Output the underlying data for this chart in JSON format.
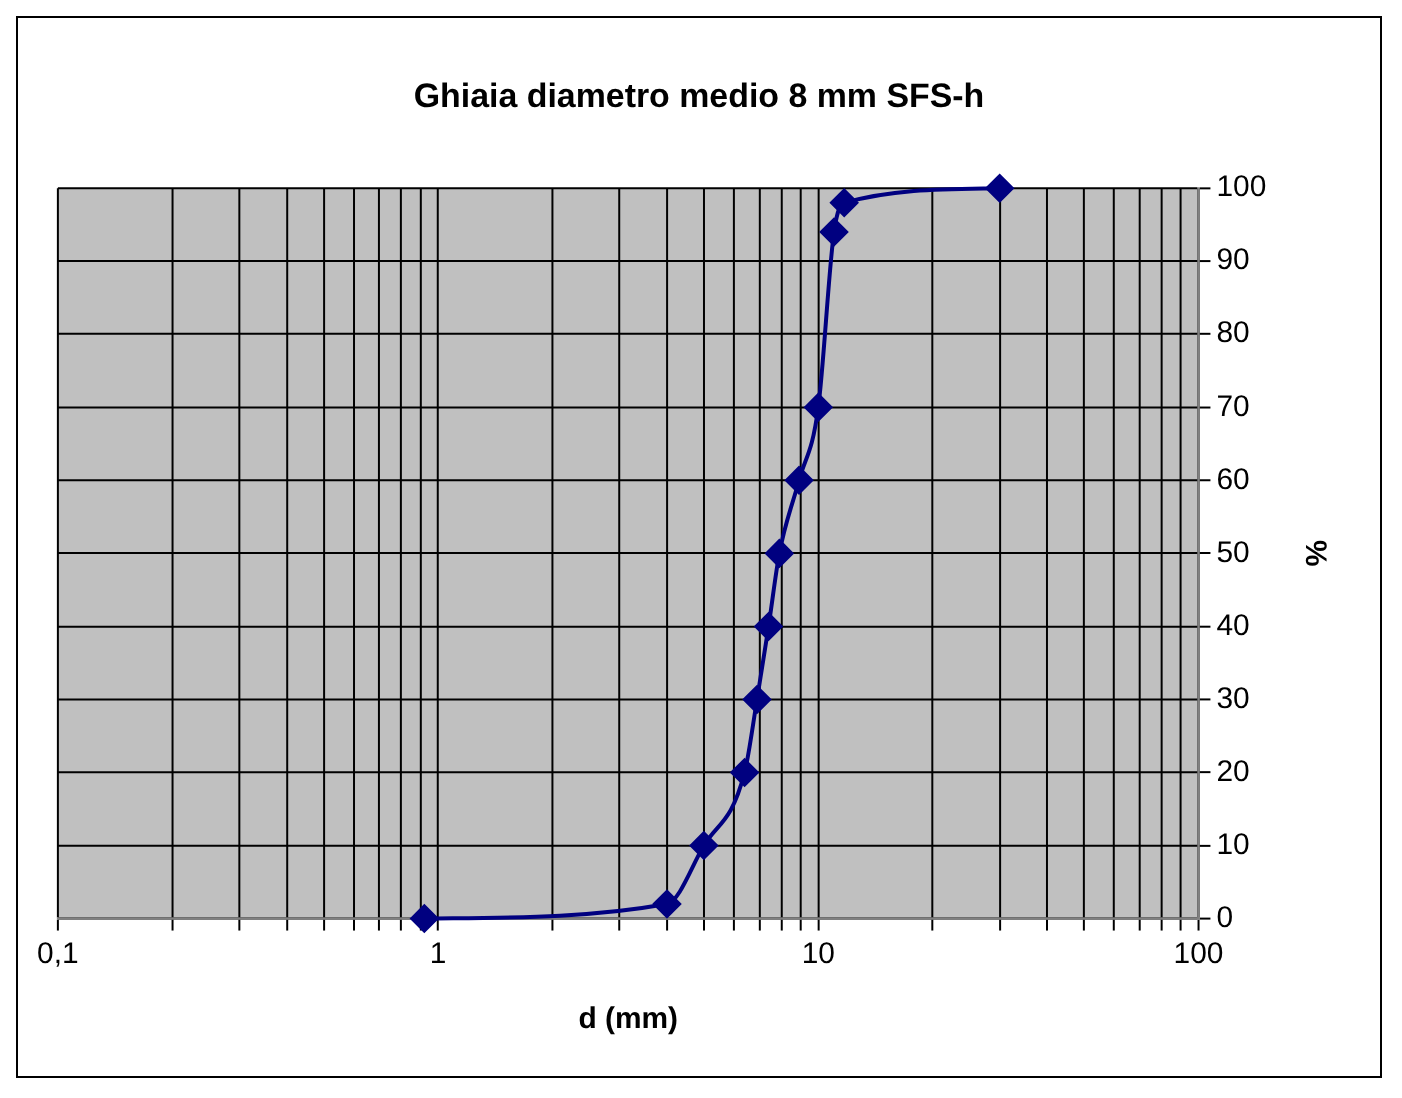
{
  "chart_data": {
    "type": "line",
    "title": "Ghiaia diametro medio 8 mm SFS-h",
    "xlabel": "d (mm)",
    "ylabel": "%",
    "log": "x",
    "x": [
      0.92,
      4.0,
      5.0,
      6.4,
      6.9,
      7.4,
      7.9,
      8.9,
      10,
      11,
      11.7,
      30
    ],
    "series": [
      {
        "color": "#000080",
        "values": [
          0,
          2,
          10,
          20,
          30,
          40,
          50,
          60,
          70,
          94,
          98,
          100
        ]
      }
    ],
    "xlim": [
      0.1,
      100
    ],
    "xticks": [
      {
        "value": 0.1,
        "label": "0,1"
      },
      {
        "value": 0.2,
        "label": null
      },
      {
        "value": 0.3,
        "label": null
      },
      {
        "value": 0.4,
        "label": null
      },
      {
        "value": 0.5,
        "label": null
      },
      {
        "value": 0.6,
        "label": null
      },
      {
        "value": 0.7,
        "label": null
      },
      {
        "value": 0.8,
        "label": null
      },
      {
        "value": 0.9,
        "label": null
      },
      1,
      {
        "value": 2,
        "label": null
      },
      {
        "value": 3,
        "label": null
      },
      {
        "value": 4,
        "label": null
      },
      {
        "value": 5,
        "label": null
      },
      {
        "value": 6,
        "label": null
      },
      {
        "value": 7,
        "label": null
      },
      {
        "value": 8,
        "label": null
      },
      {
        "value": 9,
        "label": null
      },
      10,
      {
        "value": 20,
        "label": null
      },
      {
        "value": 30,
        "label": null
      },
      {
        "value": 40,
        "label": null
      },
      {
        "value": 50,
        "label": null
      },
      {
        "value": 60,
        "label": null
      },
      {
        "value": 70,
        "label": null
      },
      {
        "value": 80,
        "label": null
      },
      {
        "value": 90,
        "label": null
      },
      100
    ],
    "ylim": [
      0,
      100
    ],
    "yticks": [
      0,
      10,
      20,
      30,
      40,
      50,
      60,
      70,
      80,
      90,
      100
    ],
    "grid": true,
    "marker": "diamond",
    "line_style": "solid",
    "legend": false
  }
}
